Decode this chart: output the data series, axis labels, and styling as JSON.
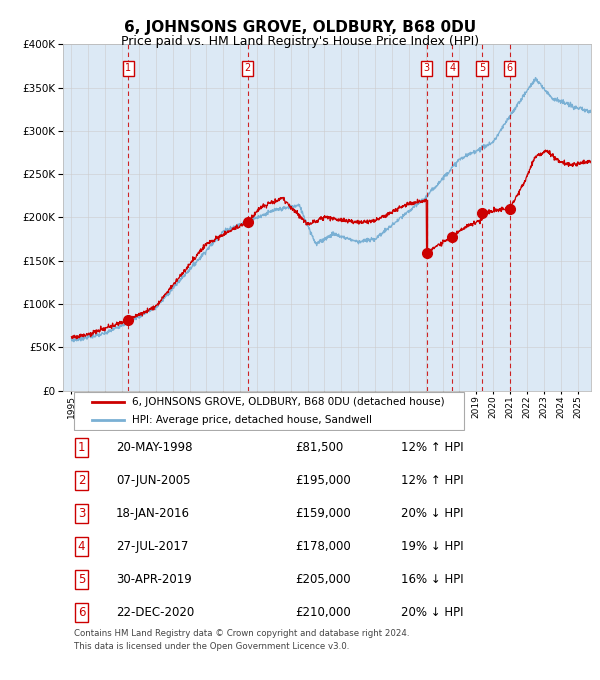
{
  "title": "6, JOHNSONS GROVE, OLDBURY, B68 0DU",
  "subtitle": "Price paid vs. HM Land Registry's House Price Index (HPI)",
  "legend_label_red": "6, JOHNSONS GROVE, OLDBURY, B68 0DU (detached house)",
  "legend_label_blue": "HPI: Average price, detached house, Sandwell",
  "footer": "Contains HM Land Registry data © Crown copyright and database right 2024.\nThis data is licensed under the Open Government Licence v3.0.",
  "transactions": [
    {
      "num": 1,
      "date": "20-MAY-1998",
      "price": 81500,
      "pct": "12%",
      "dir": "↑"
    },
    {
      "num": 2,
      "date": "07-JUN-2005",
      "price": 195000,
      "pct": "12%",
      "dir": "↑"
    },
    {
      "num": 3,
      "date": "18-JAN-2016",
      "price": 159000,
      "pct": "20%",
      "dir": "↓"
    },
    {
      "num": 4,
      "date": "27-JUL-2017",
      "price": 178000,
      "pct": "19%",
      "dir": "↓"
    },
    {
      "num": 5,
      "date": "30-APR-2019",
      "price": 205000,
      "pct": "16%",
      "dir": "↓"
    },
    {
      "num": 6,
      "date": "22-DEC-2020",
      "price": 210000,
      "pct": "20%",
      "dir": "↓"
    }
  ],
  "transaction_x": [
    1998.38,
    2005.44,
    2016.05,
    2017.57,
    2019.33,
    2020.98
  ],
  "transaction_y": [
    81500,
    195000,
    159000,
    178000,
    205000,
    210000
  ],
  "ylim": [
    0,
    400000
  ],
  "xlim_start": 1994.5,
  "xlim_end": 2025.8,
  "background_color": "#dce9f5",
  "grid_color": "#cccccc",
  "red_color": "#cc0000",
  "blue_color": "#7ab0d4",
  "dashed_color": "#cc0000",
  "title_fontsize": 11,
  "subtitle_fontsize": 9
}
